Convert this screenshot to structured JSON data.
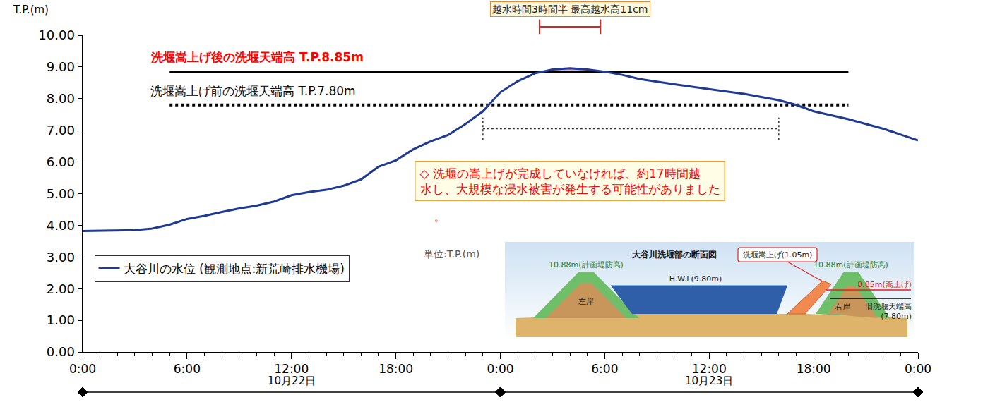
{
  "chart_data": {
    "type": "line",
    "y_label": "T.P.(m)",
    "x": [
      0,
      2,
      3,
      4,
      5,
      6,
      7,
      8,
      9,
      10,
      11,
      12,
      13,
      14,
      15,
      16,
      17,
      17.5,
      18,
      19,
      20,
      21,
      22,
      23,
      24,
      25,
      26,
      27,
      28,
      29,
      30,
      31,
      32,
      34,
      36,
      38,
      40,
      41,
      42,
      44,
      46,
      48
    ],
    "series": [
      {
        "name": "大谷川の水位 (観測地点:新荒崎排水機場)",
        "color": "#1f3a93",
        "values": [
          3.82,
          3.83,
          3.85,
          3.9,
          4.02,
          4.2,
          4.3,
          4.42,
          4.53,
          4.62,
          4.75,
          4.95,
          5.05,
          5.12,
          5.25,
          5.45,
          5.85,
          5.95,
          6.05,
          6.4,
          6.65,
          6.85,
          7.2,
          7.6,
          8.2,
          8.55,
          8.8,
          8.92,
          8.96,
          8.92,
          8.85,
          8.75,
          8.62,
          8.45,
          8.3,
          8.15,
          7.95,
          7.8,
          7.6,
          7.35,
          7.05,
          6.68
        ]
      }
    ],
    "xlim": [
      0,
      48
    ],
    "xticks": [
      {
        "value": 0,
        "label": "0:00"
      },
      {
        "value": 6,
        "label": "6:00"
      },
      {
        "value": 12,
        "label": "12:00"
      },
      {
        "value": 18,
        "label": "18:00"
      },
      {
        "value": 24,
        "label": "0:00"
      },
      {
        "value": 30,
        "label": "6:00"
      },
      {
        "value": 36,
        "label": "12:00"
      },
      {
        "value": 42,
        "label": "18:00"
      },
      {
        "value": 48,
        "label": "0:00"
      }
    ],
    "x_groups": [
      {
        "label": "10月22日",
        "from": 0,
        "to": 24
      },
      {
        "label": "10月23日",
        "from": 24,
        "to": 48
      }
    ],
    "ylim": [
      0,
      10
    ],
    "yticks": [
      {
        "value": 0,
        "label": "0.00"
      },
      {
        "value": 1,
        "label": "1.00"
      },
      {
        "value": 2,
        "label": "2.00"
      },
      {
        "value": 3,
        "label": "3.00"
      },
      {
        "value": 4,
        "label": "4.00"
      },
      {
        "value": 5,
        "label": "5.00"
      },
      {
        "value": 6,
        "label": "6.00"
      },
      {
        "value": 7,
        "label": "7.00"
      },
      {
        "value": 8,
        "label": "8.00"
      },
      {
        "value": 9,
        "label": "9.00"
      },
      {
        "value": 10,
        "label": "10.00"
      }
    ],
    "grid": false,
    "legend": "lower left",
    "reference_lines": [
      {
        "label": "洗堰嵩上げ後の洗堰天端高 T.P.8.85m",
        "value": 8.85,
        "from": 5,
        "to": 44,
        "color": "#000000",
        "label_color": "#ff0000",
        "line_style": "solid"
      },
      {
        "label": "洗堰嵩上げ前の洗堰天端高 T.P.7.80m",
        "value": 7.8,
        "from": 5,
        "to": 44,
        "color": "#000000",
        "label_color": "#000000",
        "line_style": "dotted"
      }
    ],
    "overflow": {
      "label": "越水時間3時間半 最高越水高11cm",
      "from": 26.25,
      "to": 29.75,
      "color": "#f4a6c8"
    },
    "without_raise": {
      "lines": [
        "◇ 洗堰の嵩上げが完成していなければ、約17時間越",
        "水し、大規模な浸水被害が発生する可能性がありました"
      ],
      "trailing": "。",
      "from": 23,
      "to": 40
    },
    "unit_note": "単位:T.P.(m)",
    "inset": {
      "title": "大谷川洗堰部の断面図",
      "left_levee": "10.88m(計画堤防高)",
      "right_levee": "10.88m(計画堤防高)",
      "hwl": "H.W.L(9.80m)",
      "raise": "洗堰嵩上げ(1.05m)",
      "raised_crest": "8.85m(嵩上げ)",
      "old_crest": [
        "旧洗堰天端高",
        "(7.80m)"
      ],
      "left_bank": "左岸",
      "right_bank": "右岸"
    }
  }
}
